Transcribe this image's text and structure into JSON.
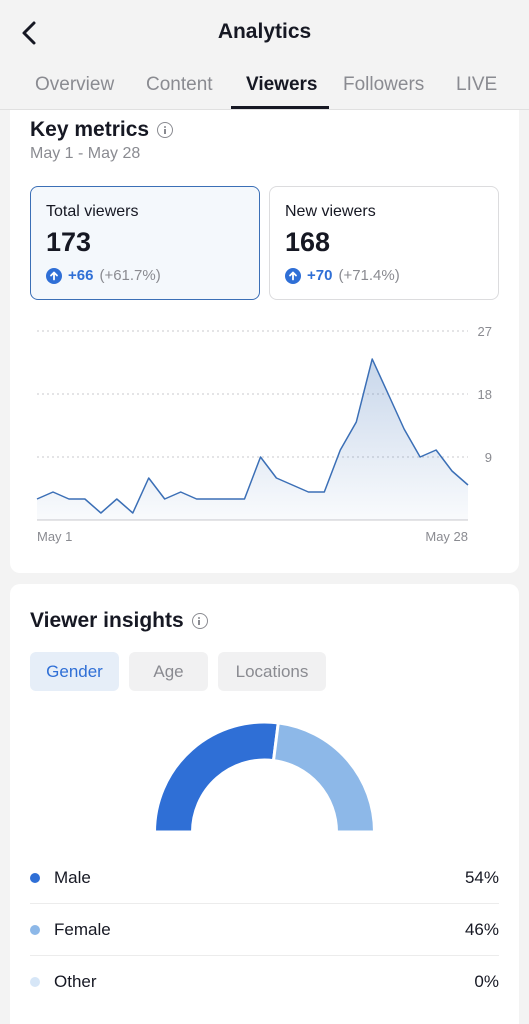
{
  "header": {
    "title": "Analytics",
    "tabs": [
      "Overview",
      "Content",
      "Viewers",
      "Followers",
      "LIVE"
    ]
  },
  "key_metrics": {
    "title": "Key metrics",
    "date_range": "May 1 - May 28",
    "total": {
      "label": "Total viewers",
      "value": "173",
      "change": "+66",
      "change_pct": "(+61.7%)"
    },
    "new": {
      "label": "New viewers",
      "value": "168",
      "change": "+70",
      "change_pct": "(+71.4%)"
    }
  },
  "chart_data": {
    "type": "area",
    "x_labels": [
      "May 1",
      "May 28"
    ],
    "y_ticks": [
      "27",
      "18",
      "9"
    ],
    "ylim": [
      0,
      27
    ],
    "values": [
      3,
      4,
      3,
      3,
      1,
      3,
      1,
      6,
      3,
      4,
      3,
      3,
      3,
      3,
      9,
      6,
      5,
      4,
      4,
      10,
      14,
      23,
      18,
      13,
      9,
      10,
      7,
      5
    ],
    "grid": true,
    "color": "#3b6fb6"
  },
  "insights": {
    "title": "Viewer insights",
    "tabs": [
      "Gender",
      "Age",
      "Locations"
    ],
    "gender": [
      {
        "label": "Male",
        "pct": "54%",
        "value": 54,
        "color": "#2f6fd6"
      },
      {
        "label": "Female",
        "pct": "46%",
        "value": 46,
        "color": "#8db8e8"
      },
      {
        "label": "Other",
        "pct": "0%",
        "value": 0,
        "color": "#d6e6f7"
      }
    ]
  }
}
